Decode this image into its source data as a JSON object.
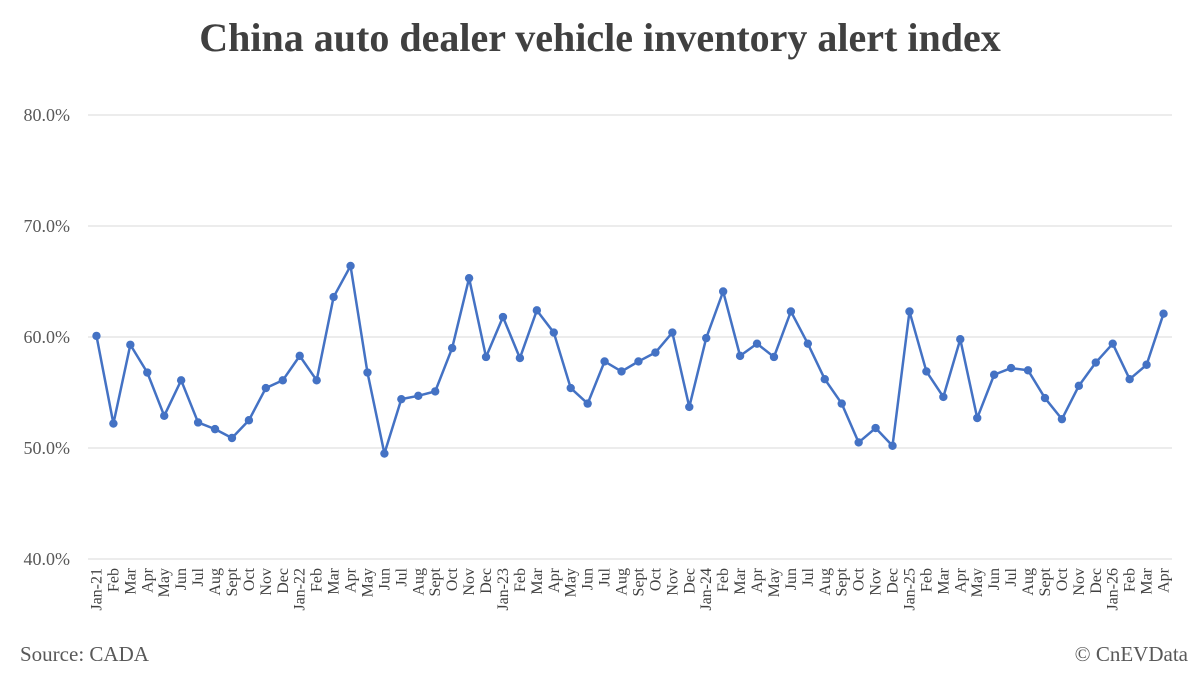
{
  "title": "China auto dealer vehicle inventory alert index",
  "source": "Source: CADA",
  "copyright": "© CnEVData",
  "colors": {
    "line": "#4472C4",
    "grid": "#d9d9d9",
    "text": "#404040"
  },
  "chart_data": {
    "type": "line",
    "title": "China auto dealer vehicle inventory alert index",
    "xlabel": "",
    "ylabel": "",
    "ylim": [
      40,
      80
    ],
    "yticks": [
      "40.0%",
      "50.0%",
      "60.0%",
      "70.0%",
      "80.0%"
    ],
    "grid": true,
    "categories": [
      "Jan-21",
      "Feb",
      "Mar",
      "Apr",
      "May",
      "Jun",
      "Jul",
      "Aug",
      "Sept",
      "Oct",
      "Nov",
      "Dec",
      "Jan-22",
      "Feb",
      "Mar",
      "Apr",
      "May",
      "Jun",
      "Jul",
      "Aug",
      "Sept",
      "Oct",
      "Nov",
      "Dec",
      "Jan-23",
      "Feb",
      "Mar",
      "Apr",
      "May",
      "Jun",
      "Jul",
      "Aug",
      "Sept",
      "Oct",
      "Nov",
      "Dec",
      "Jan-24",
      "Feb",
      "Mar",
      "Apr",
      "May",
      "Jun",
      "Jul",
      "Aug",
      "Sept",
      "Oct",
      "Nov",
      "Dec",
      "Jan-25",
      "Feb",
      "Mar",
      "Apr",
      "May",
      "Jun",
      "Jul",
      "Aug",
      "Sept",
      "Oct",
      "Nov",
      "Dec",
      "Jan-26",
      "Feb",
      "Mar",
      "Apr"
    ],
    "series": [
      {
        "values": [
          60.1,
          52.2,
          59.3,
          56.8,
          52.9,
          56.1,
          52.3,
          51.7,
          50.9,
          52.5,
          55.4,
          56.1,
          58.3,
          56.1,
          63.6,
          66.4,
          56.8,
          49.5,
          54.4,
          54.7,
          55.1,
          59.0,
          65.3,
          58.2,
          61.8,
          58.1,
          62.4,
          60.4,
          55.4,
          54.0,
          57.8,
          56.9,
          57.8,
          58.6,
          60.4,
          53.7,
          59.9,
          64.1,
          58.3,
          59.4,
          58.2,
          62.3,
          59.4,
          56.2,
          54.0,
          50.5,
          51.8,
          50.2,
          62.3,
          56.9,
          54.6,
          59.8,
          52.7,
          56.6,
          57.2,
          57.0,
          54.5,
          52.6,
          55.6,
          57.7,
          59.4,
          56.2,
          57.5,
          62.1
        ]
      }
    ]
  }
}
